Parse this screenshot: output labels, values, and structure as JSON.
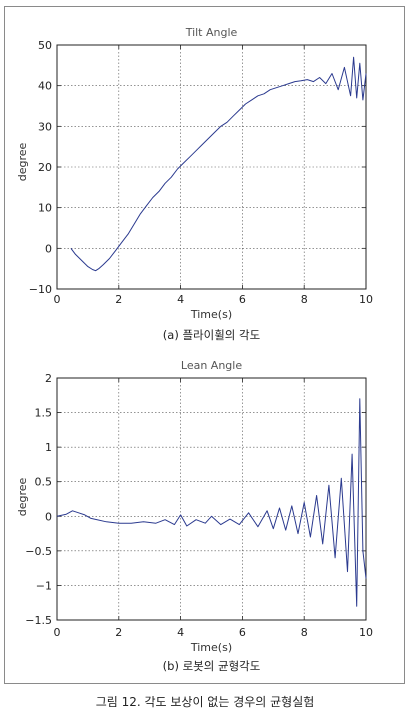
{
  "figure": {
    "caption": "그림 12. 각도 보상이 없는 경우의 균형실험"
  },
  "chart_data": [
    {
      "type": "line",
      "title": "Tilt Angle",
      "subcaption": "(a) 플라이휠의 각도",
      "xlabel": "Time(s)",
      "ylabel": "degree",
      "xlim": [
        0,
        10
      ],
      "ylim": [
        -10,
        50
      ],
      "xticks": [
        "0",
        "2",
        "4",
        "6",
        "8",
        "10"
      ],
      "yticks": [
        "50",
        "40",
        "30",
        "20",
        "10",
        "0",
        "−10"
      ],
      "grid": true,
      "color": "#2b3a8f",
      "series": [
        {
          "x": [
            0.45,
            0.6,
            0.8,
            1.0,
            1.15,
            1.25,
            1.35,
            1.5,
            1.7,
            1.9,
            2.1,
            2.3,
            2.5,
            2.7,
            2.9,
            3.1,
            3.3,
            3.5,
            3.7,
            3.9,
            4.1,
            4.3,
            4.5,
            4.7,
            4.9,
            5.1,
            5.3,
            5.5,
            5.7,
            5.9,
            6.1,
            6.3,
            6.5,
            6.7,
            6.9,
            7.1,
            7.3,
            7.5,
            7.7,
            7.9,
            8.1,
            8.3,
            8.5,
            8.7,
            8.9,
            9.1,
            9.3,
            9.5,
            9.6,
            9.7,
            9.8,
            9.9,
            10.0
          ],
          "y": [
            0,
            -1.5,
            -3,
            -4.5,
            -5.2,
            -5.5,
            -5.0,
            -4.0,
            -2.5,
            -0.5,
            1.5,
            3.5,
            6.0,
            8.5,
            10.5,
            12.5,
            14.0,
            16.0,
            17.5,
            19.5,
            21.0,
            22.5,
            24.0,
            25.5,
            27.0,
            28.5,
            30.0,
            31.0,
            32.5,
            34.0,
            35.5,
            36.5,
            37.5,
            38.0,
            39.0,
            39.5,
            40.0,
            40.5,
            41.0,
            41.2,
            41.5,
            41.0,
            42.0,
            40.5,
            43.0,
            39.0,
            44.5,
            37.5,
            47.0,
            37.0,
            45.5,
            36.5,
            43.0
          ]
        }
      ]
    },
    {
      "type": "line",
      "title": "Lean Angle",
      "subcaption": "(b) 로봇의 균형각도",
      "xlabel": "Time(s)",
      "ylabel": "degree",
      "xlim": [
        0,
        10
      ],
      "ylim": [
        -1.5,
        2
      ],
      "xticks": [
        "0",
        "2",
        "4",
        "6",
        "8",
        "10"
      ],
      "yticks": [
        "2",
        "1.5",
        "1",
        "0.5",
        "0",
        "−0.5",
        "−1",
        "−1.5"
      ],
      "grid": true,
      "color": "#2b3a8f",
      "series": [
        {
          "x": [
            0.0,
            0.3,
            0.5,
            0.7,
            0.9,
            1.1,
            1.3,
            1.6,
            2.0,
            2.4,
            2.8,
            3.2,
            3.5,
            3.8,
            4.0,
            4.2,
            4.5,
            4.8,
            5.0,
            5.3,
            5.6,
            5.9,
            6.2,
            6.5,
            6.8,
            7.0,
            7.2,
            7.4,
            7.6,
            7.8,
            8.0,
            8.2,
            8.4,
            8.6,
            8.8,
            9.0,
            9.2,
            9.4,
            9.55,
            9.7,
            9.8,
            9.9,
            10.0
          ],
          "y": [
            0.0,
            0.03,
            0.08,
            0.05,
            0.02,
            -0.03,
            -0.05,
            -0.08,
            -0.1,
            -0.1,
            -0.08,
            -0.1,
            -0.05,
            -0.12,
            0.02,
            -0.14,
            -0.05,
            -0.1,
            0.0,
            -0.12,
            -0.04,
            -0.12,
            0.05,
            -0.15,
            0.08,
            -0.18,
            0.12,
            -0.2,
            0.15,
            -0.25,
            0.2,
            -0.3,
            0.3,
            -0.4,
            0.45,
            -0.6,
            0.55,
            -0.8,
            0.9,
            -1.3,
            1.7,
            -0.5,
            -0.9
          ]
        }
      ]
    }
  ]
}
